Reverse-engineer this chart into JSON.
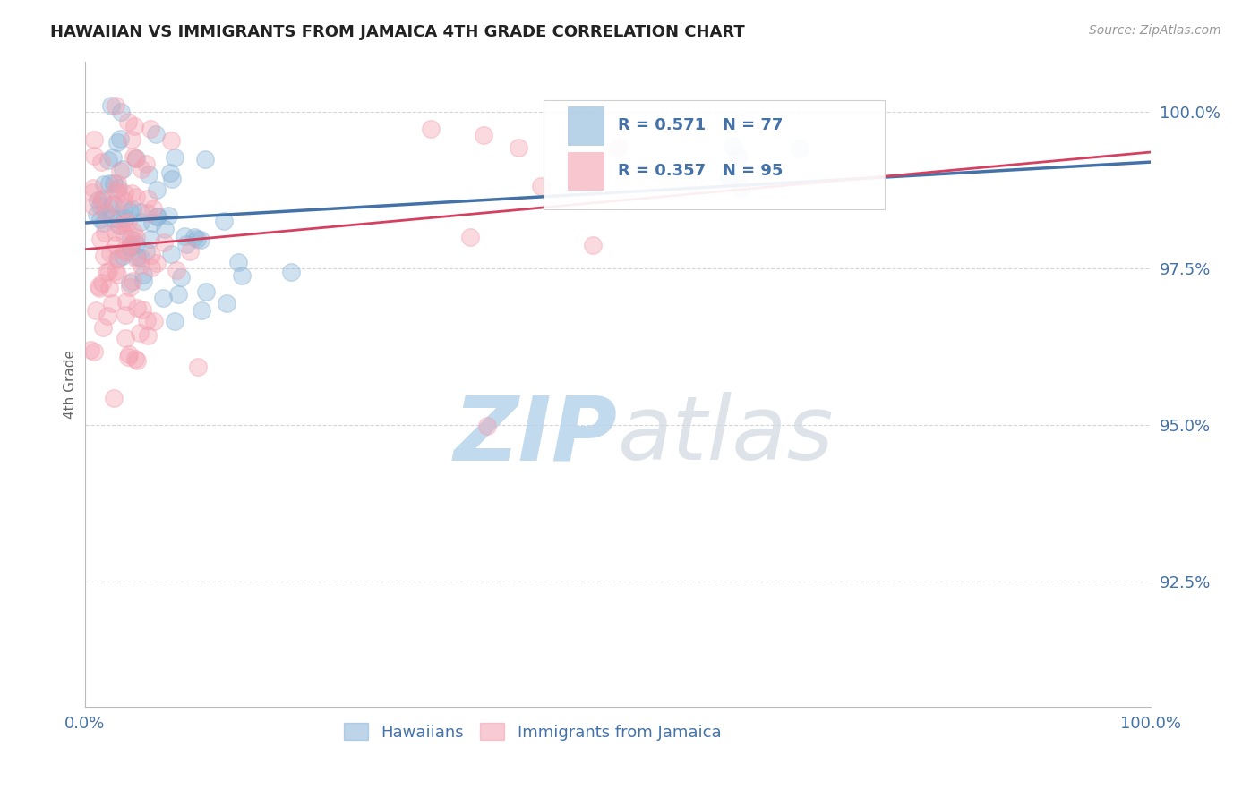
{
  "title": "HAWAIIAN VS IMMIGRANTS FROM JAMAICA 4TH GRADE CORRELATION CHART",
  "source_text": "Source: ZipAtlas.com",
  "ylabel": "4th Grade",
  "xlim": [
    0.0,
    1.0
  ],
  "ylim": [
    0.905,
    1.008
  ],
  "yticks": [
    0.925,
    0.95,
    0.975,
    1.0
  ],
  "ytick_labels": [
    "92.5%",
    "95.0%",
    "97.5%",
    "100.0%"
  ],
  "xticks": [
    0.0,
    1.0
  ],
  "xtick_labels": [
    "0.0%",
    "100.0%"
  ],
  "hawaiian_R": 0.571,
  "hawaiian_N": 77,
  "jamaica_R": 0.357,
  "jamaica_N": 95,
  "blue_color": "#8ab4d8",
  "pink_color": "#f4a0b0",
  "blue_line_color": "#4472a8",
  "pink_line_color": "#d44060",
  "legend_text_color": "#4472a8",
  "background_color": "#ffffff",
  "seed": 42,
  "point_size": 200,
  "point_alpha": 0.4,
  "grid_color": "#cccccc",
  "grid_style": "--",
  "grid_alpha": 0.8
}
